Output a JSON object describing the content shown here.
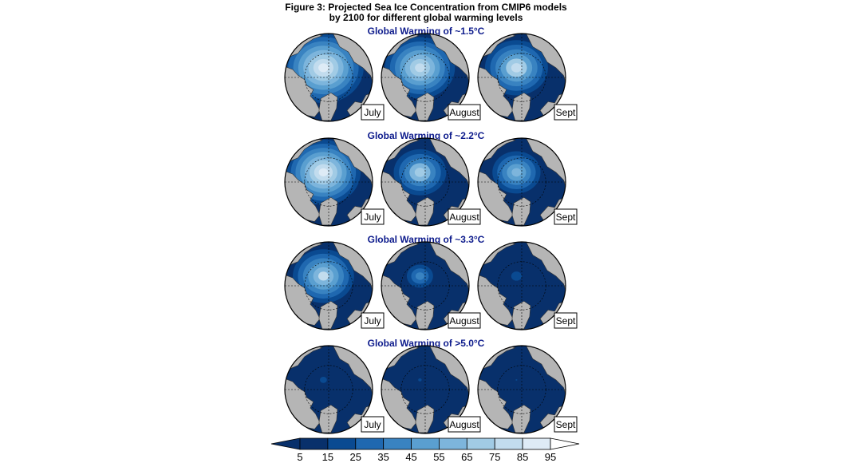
{
  "figure": {
    "title_line1": "Figure 3: Projected Sea Ice Concentration from CMIP6 models",
    "title_line2": "by 2100 for different global warming levels"
  },
  "chart_data": {
    "type": "heatmap",
    "title": "Figure 3: Projected Sea Ice Concentration from CMIP6 models by 2100 for different global warming levels",
    "rows": [
      {
        "label": "Global Warming of ~1.5°C",
        "extent_level": [
          0.92,
          0.8,
          0.72
        ]
      },
      {
        "label": "Global Warming of ~2.2°C",
        "extent_level": [
          0.85,
          0.6,
          0.55
        ]
      },
      {
        "label": "Global Warming of ~3.3°C",
        "extent_level": [
          0.7,
          0.3,
          0.12
        ]
      },
      {
        "label": "Global Warming of >5.0°C",
        "extent_level": [
          0.08,
          0.04,
          0.02
        ]
      }
    ],
    "months": [
      "July",
      "August",
      "Sept"
    ],
    "colorbar": {
      "ticks": [
        "5",
        "15",
        "25",
        "35",
        "45",
        "55",
        "65",
        "75",
        "85",
        "95"
      ],
      "colors": [
        "#08306b",
        "#0a4a91",
        "#1f68b0",
        "#3983c1",
        "#5a9fd0",
        "#7db5dc",
        "#a1cbe5",
        "#c2dcee",
        "#deebf6",
        "#ffffff"
      ],
      "extend": "both"
    },
    "colors": {
      "land": "#b5b5b5",
      "ocean_low": "#08306b",
      "outline": "#222222"
    }
  }
}
